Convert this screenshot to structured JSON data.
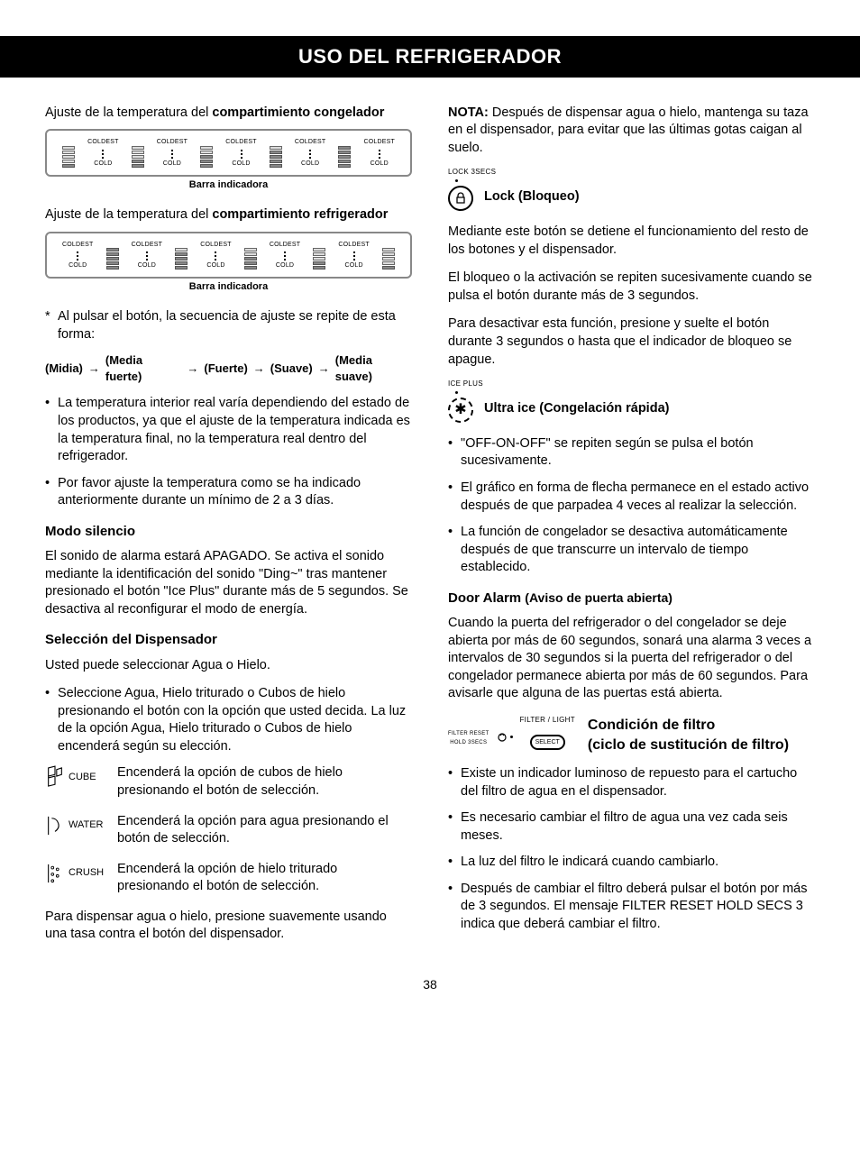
{
  "page_title": "USO DEL REFRIGERADOR",
  "page_number": "38",
  "colors": {
    "text": "#000000",
    "bg": "#ffffff",
    "panel_border": "#888888"
  },
  "left": {
    "freezer_heading_pre": "Ajuste de la temperatura del ",
    "freezer_heading_bold": "compartimiento congelador",
    "fridge_heading_pre": "Ajuste de la temperatura del ",
    "fridge_heading_bold": "compartimiento refrigerador",
    "indicator_caption": "Barra indicadora",
    "temp_top": "COLDEST",
    "temp_bottom": "COLD",
    "star_note": "Al pulsar el botón, la secuencia de ajuste se repite de esta forma:",
    "seq": [
      "(Midia)",
      "(Media fuerte)",
      "(Fuerte)",
      "(Suave)",
      "(Media suave)"
    ],
    "b1": "La temperatura interior real varía dependiendo del estado de los productos, ya que el ajuste de la temperatura indicada es la temperatura final, no la temperatura real dentro del refrigerador.",
    "b2": "Por favor ajuste la temperatura como se ha indicado anteriormente durante un mínimo de 2 a 3 días.",
    "silent_title": "Modo silencio",
    "silent_body": "El sonido de alarma estará APAGADO. Se activa el sonido mediante la identificación del sonido \"Ding~\" tras mantener presionado el botón \"Ice Plus\"  durante más de 5 segundos. Se desactiva al reconfigurar el modo de energía.",
    "disp_title": "Selección del Dispensador",
    "disp_intro": "Usted puede seleccionar Agua o Hielo.",
    "disp_bullet": "Seleccione Agua, Hielo triturado o Cubos de hielo presionando el botón con la opción que usted decida. La luz de la opción Agua, Hielo triturado o Cubos de hielo encenderá según su elección.",
    "cube_label": "CUBE",
    "cube_text": "Encenderá la opción de cubos de hielo presionando el botón de selección.",
    "water_label": "WATER",
    "water_text": "Encenderá la opción para agua presionando el botón de selección.",
    "crush_label": "CRUSH",
    "crush_text": "Encenderá la opción de hielo triturado presionando el botón de selección.",
    "disp_foot": "Para dispensar agua o hielo, presione suavemente usando una tasa contra el botón del dispensador."
  },
  "right": {
    "nota_label": "NOTA:",
    "nota_body": " Después de dispensar agua o hielo, mantenga su taza en el dispensador, para evitar que las últimas gotas caigan al suelo.",
    "lock_small": "LOCK 3SECS",
    "lock_title": "Lock (Bloqueo)",
    "lock_p1": "Mediante este botón se detiene el funcionamiento del resto de los botones y el dispensador.",
    "lock_p2": "El bloqueo o la activación se repiten sucesivamente cuando se pulsa el botón durante más de 3 segundos.",
    "lock_p3": "Para desactivar esta función, presione y suelte el botón durante 3 segundos o hasta que el indicador de bloqueo se apague.",
    "ice_small": "ICE PLUS",
    "ice_title": "Ultra ice (Congelación rápida)",
    "ice_b1": "\"OFF-ON-OFF\" se repiten según se pulsa el botón sucesivamente.",
    "ice_b2": "El gráfico en forma de flecha permanece en el estado activo después de que parpadea 4 veces al realizar la selección.",
    "ice_b3": "La función de congelador se desactiva automáticamente después de que transcurre un intervalo de tiempo establecido.",
    "door_title_bold": "Door Alarm ",
    "door_title_paren": "(Aviso de puerta abierta)",
    "door_body": "Cuando la puerta del refrigerador o del congelador se deje abierta por más de 60 segundos, sonará una alarma 3 veces a intervalos de 30 segundos si la puerta del refrigerador o del congelador permanece abierta por más de 60 segundos. Para avisarle que alguna de las puertas está abierta.",
    "filter_small_top": "FILTER / LIGHT",
    "filter_small_left_1": "FILTER RESET",
    "filter_small_left_2": "HOLD 3SECS",
    "filter_select": "SELECT",
    "filter_title1": "Condición de filtro",
    "filter_title2": "(ciclo de sustitución de filtro)",
    "filter_b1": "Existe un indicador luminoso de repuesto para el cartucho del filtro de agua en el dispensador.",
    "filter_b2": "Es necesario cambiar el filtro de agua una vez cada seis meses.",
    "filter_b3": "La luz del filtro le indicará cuando cambiarlo.",
    "filter_b4": "Después de cambiar el filtro deberá pulsar el botón por más de 3 segundos. El mensaje FILTER RESET HOLD SECS 3 indica que deberá cambiar el filtro."
  },
  "freezer_bars": [
    1,
    2,
    3,
    4,
    5
  ],
  "fridge_bars": [
    5,
    4,
    3,
    2,
    1
  ]
}
